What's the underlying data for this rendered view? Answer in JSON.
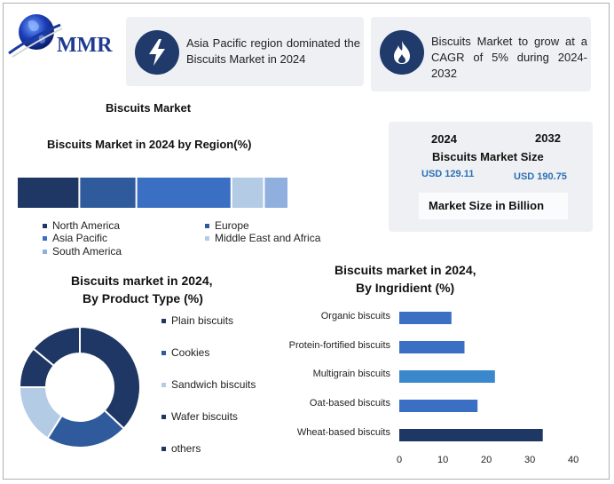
{
  "colors": {
    "dark": "#1f3764",
    "mid": "#2f5a9c",
    "bright": "#3a6fc4",
    "light": "#b4cbe6",
    "lighter": "#8fb0de",
    "accent": "#2c6fb5",
    "icon_bg": "#1f3a6b"
  },
  "logo": {
    "text": "MMR"
  },
  "cards": [
    {
      "icon": "lightning-icon",
      "text": "Asia Pacific region dominated the Biscuits Market in 2024"
    },
    {
      "icon": "flame-icon",
      "text": "Biscuits Market to grow at a CAGR of 5% during 2024-2032"
    }
  ],
  "main_title": "Biscuits Market",
  "market_size": {
    "year_start": "2024",
    "year_end": "2032",
    "title": "Biscuits Market Size",
    "value_start": "USD 129.11",
    "value_end": "USD 190.75",
    "unit_label": "Market Size in Billion"
  },
  "chart_data": [
    {
      "type": "bar",
      "orientation": "stacked-horizontal",
      "title": "Biscuits Market in 2024 by Region(%)",
      "categories": [
        "North America",
        "Europe",
        "Asia Pacific",
        "Middle East and Africa",
        "South America"
      ],
      "values": [
        23,
        21,
        35,
        12,
        9
      ],
      "colors": [
        "#1f3764",
        "#2f5a9c",
        "#3a6fc4",
        "#b4cbe6",
        "#8fb0de"
      ],
      "legend_position": "bottom"
    },
    {
      "type": "pie",
      "variant": "donut",
      "title_line1": "Biscuits market in 2024,",
      "title_line2": "By Product Type (%)",
      "categories": [
        "Plain biscuits",
        "Cookies",
        "Sandwich biscuits",
        "Wafer biscuits",
        "others"
      ],
      "values": [
        37,
        22,
        16,
        11,
        14
      ],
      "colors": [
        "#1f3764",
        "#2f5a9c",
        "#b4cbe6",
        "#1f3764",
        "#1f3764"
      ],
      "legend_position": "right"
    },
    {
      "type": "bar",
      "orientation": "horizontal",
      "title_line1": "Biscuits market in 2024,",
      "title_line2": "By Ingridient (%)",
      "categories": [
        "Organic biscuits",
        "Protein-fortified biscuits",
        "Multigrain biscuits",
        "Oat-based biscuits",
        "Wheat-based biscuits"
      ],
      "values": [
        12,
        15,
        22,
        18,
        33
      ],
      "colors": [
        "#3a6fc4",
        "#3a6fc4",
        "#3a87cc",
        "#3a6fc4",
        "#1f3764"
      ],
      "xlim": [
        0,
        40
      ],
      "xticks": [
        "0",
        "10",
        "20",
        "30",
        "40"
      ]
    }
  ]
}
